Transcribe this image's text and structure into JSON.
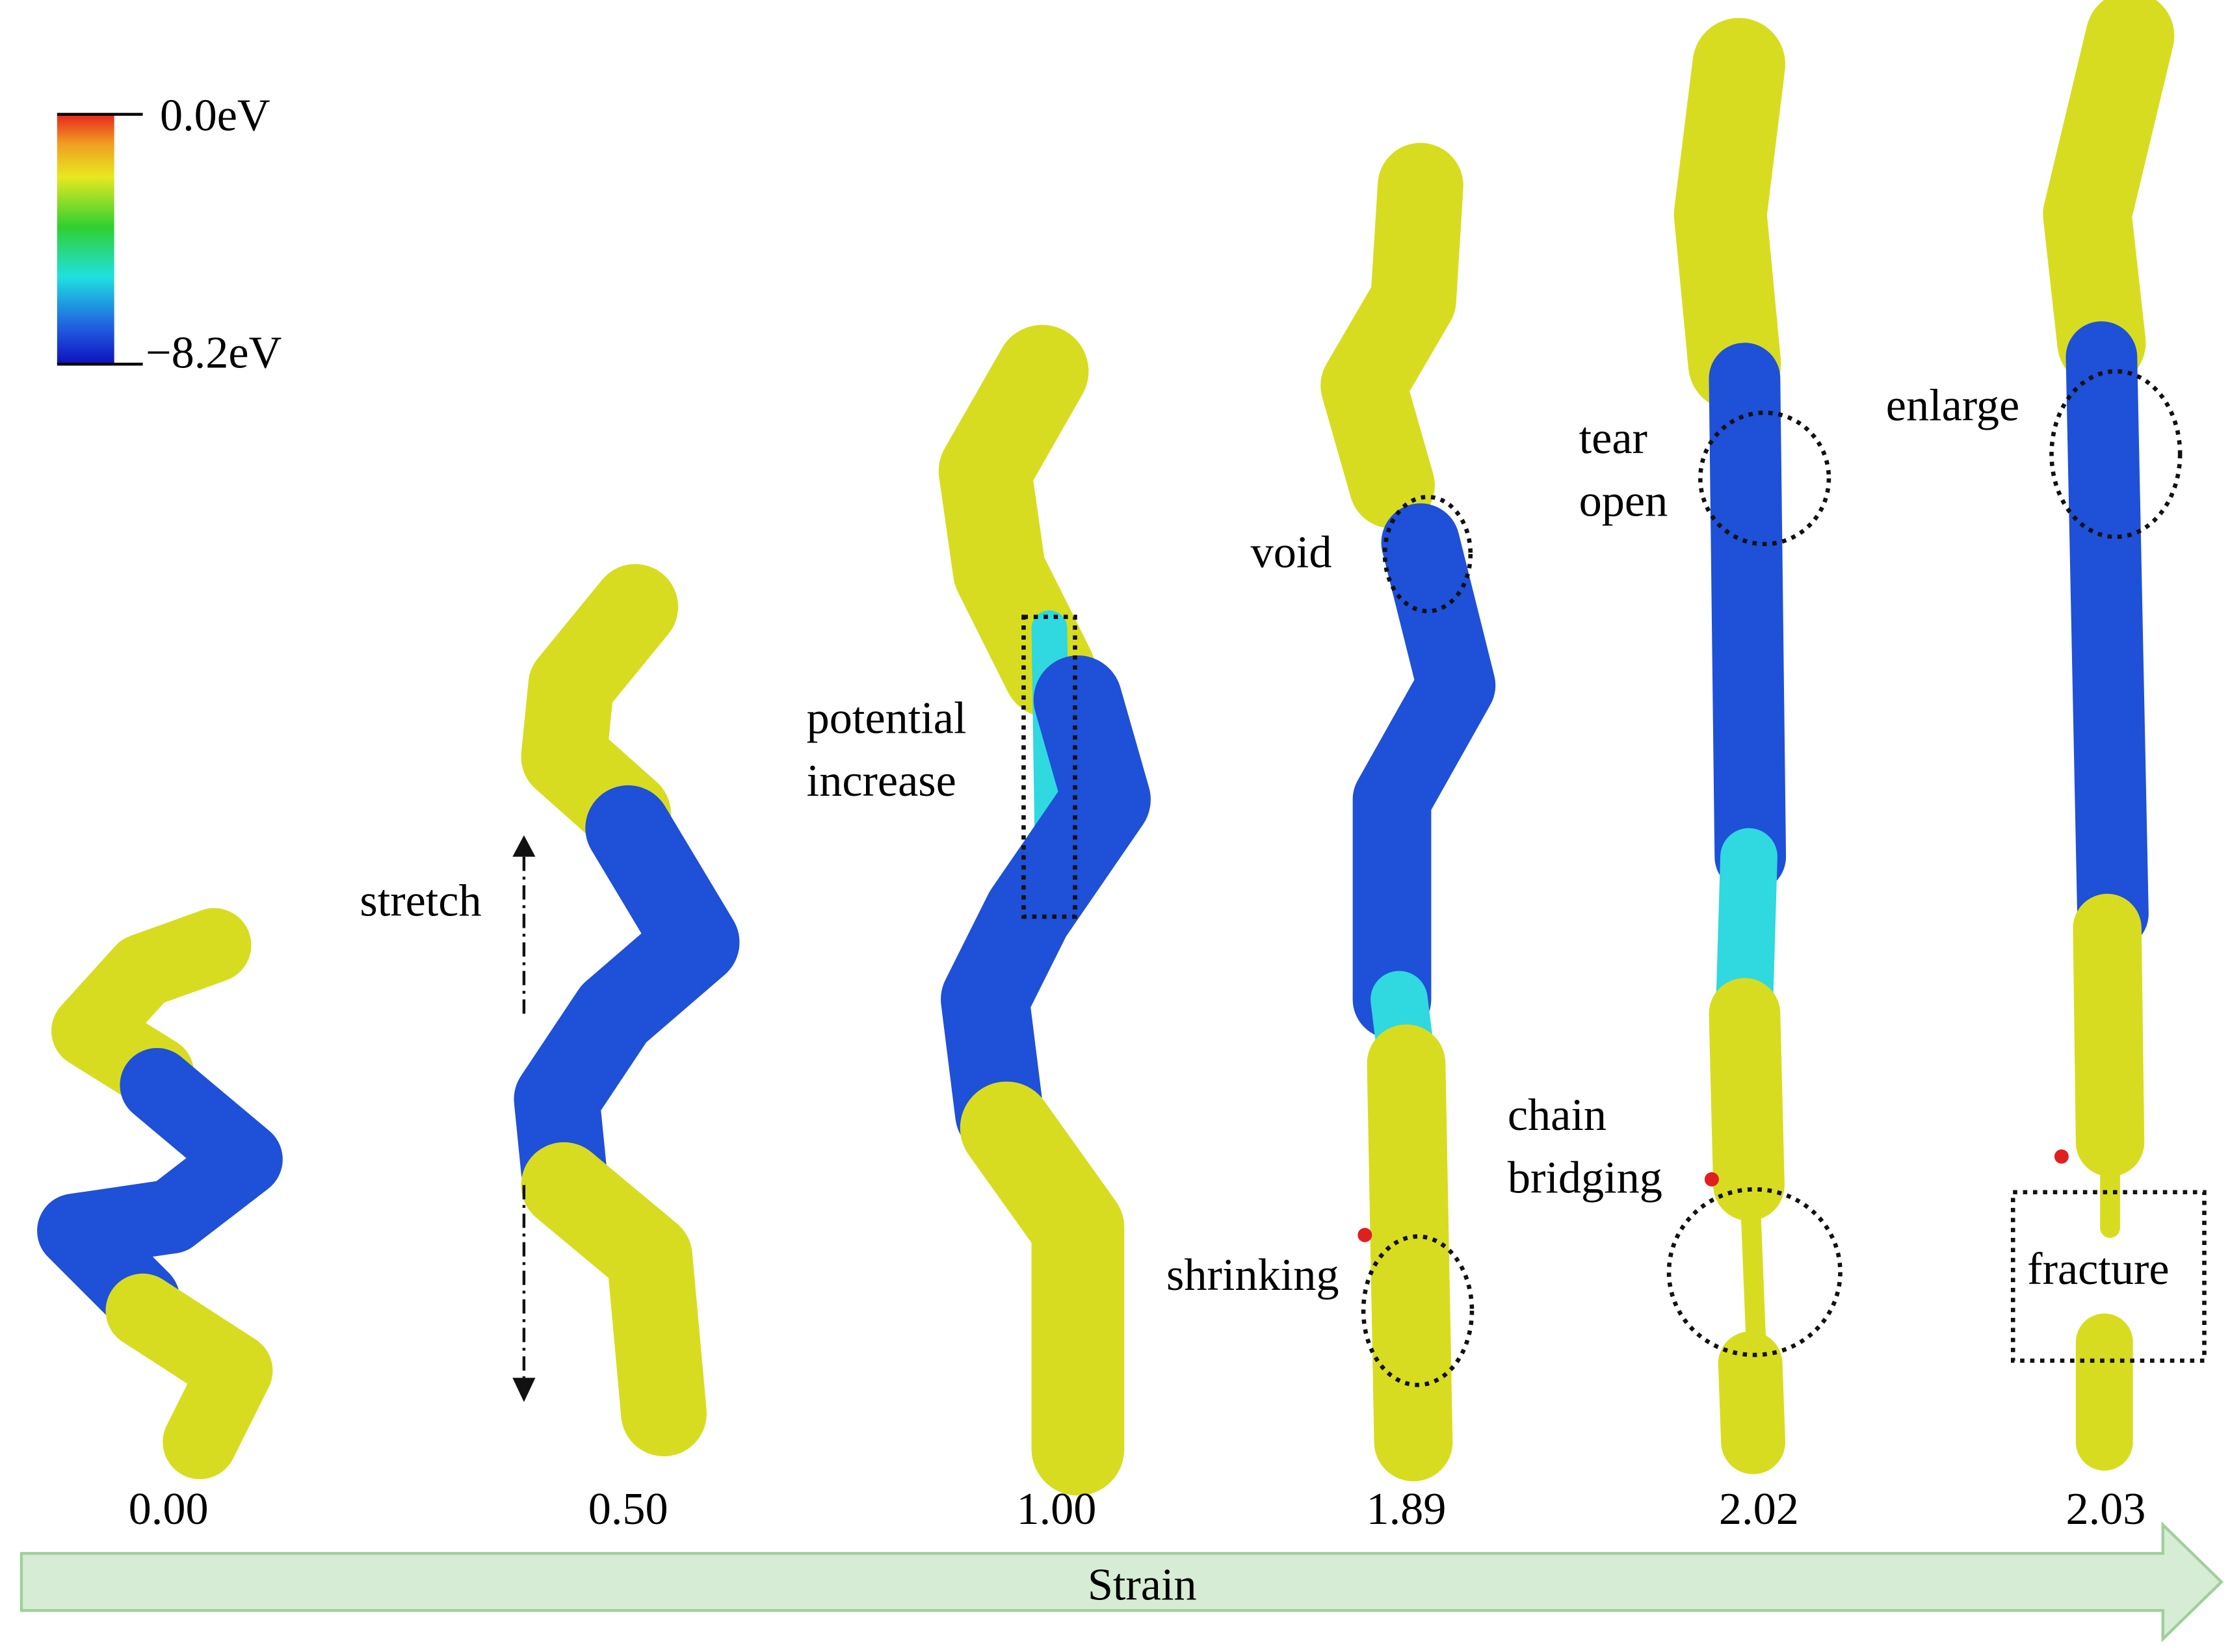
{
  "colorbar": {
    "max_label": "0.0eV",
    "min_label": "−8.2eV"
  },
  "snapshots": [
    {
      "strain": "0.00"
    },
    {
      "strain": "0.50"
    },
    {
      "strain": "1.00"
    },
    {
      "strain": "1.89"
    },
    {
      "strain": "2.02"
    },
    {
      "strain": "2.03"
    }
  ],
  "annotations": [
    {
      "lines": [
        "stretch"
      ]
    },
    {
      "lines": [
        "potential",
        "increase"
      ]
    },
    {
      "lines": [
        "void"
      ]
    },
    {
      "lines": [
        "shrinking"
      ]
    },
    {
      "lines": [
        "tear",
        "open"
      ]
    },
    {
      "lines": [
        "chain",
        "bridging"
      ]
    },
    {
      "lines": [
        "enlarge"
      ]
    },
    {
      "lines": [
        "fracture"
      ]
    }
  ],
  "axis_label": "Strain"
}
